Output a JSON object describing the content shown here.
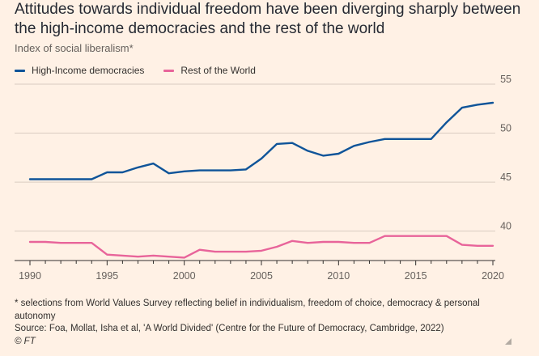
{
  "header": {
    "title": "Attitudes towards individual freedom have been diverging sharply between the high-income democracies and the rest of the world",
    "subtitle": "Index of social liberalism*"
  },
  "footer": {
    "note": "* selections from World Values Survey reflecting belief in individualism, freedom of choice, democracy & personal autonomy",
    "source": "Source: Foa, Mollat, Isha et al, 'A World Divided' (Centre for the Future of Democracy, Cambridge, 2022)",
    "credit": "© FT"
  },
  "colors": {
    "background": "#FFF1E5",
    "high_income": "#0F5499",
    "rest_of_world": "#E8649A",
    "grid": "#D9CCC1",
    "axis": "#33302E"
  },
  "chart_data": {
    "type": "line",
    "x": [
      1990,
      1991,
      1992,
      1993,
      1994,
      1995,
      1996,
      1997,
      1998,
      1999,
      2000,
      2001,
      2002,
      2003,
      2004,
      2005,
      2006,
      2007,
      2008,
      2009,
      2010,
      2011,
      2012,
      2013,
      2014,
      2015,
      2016,
      2017,
      2018,
      2019,
      2020
    ],
    "series": [
      {
        "name": "High-Income democracies",
        "color": "#0F5499",
        "values": [
          45.3,
          45.3,
          45.3,
          45.3,
          45.3,
          46.0,
          46.0,
          46.5,
          46.9,
          45.9,
          46.1,
          46.2,
          46.2,
          46.2,
          46.3,
          47.4,
          48.9,
          49.0,
          48.2,
          47.7,
          47.9,
          48.7,
          49.1,
          49.4,
          49.4,
          49.4,
          49.4,
          51.1,
          52.6,
          52.9,
          53.1
        ]
      },
      {
        "name": "Rest of the World",
        "color": "#E8649A",
        "values": [
          38.9,
          38.9,
          38.8,
          38.8,
          38.8,
          37.6,
          37.5,
          37.4,
          37.5,
          37.4,
          37.3,
          38.1,
          37.9,
          37.9,
          37.9,
          38.0,
          38.4,
          39.0,
          38.8,
          38.9,
          38.9,
          38.8,
          38.8,
          39.5,
          39.5,
          39.5,
          39.5,
          39.5,
          38.6,
          38.5,
          38.5
        ]
      }
    ],
    "xlim": [
      1990,
      2020
    ],
    "ylim": [
      37,
      55
    ],
    "yticks": [
      40,
      45,
      50,
      55
    ],
    "xticks": [
      1990,
      1995,
      2000,
      2005,
      2010,
      2015,
      2020
    ],
    "grid": true,
    "legend_position": "top-left",
    "title": "",
    "xlabel": "",
    "ylabel": ""
  }
}
